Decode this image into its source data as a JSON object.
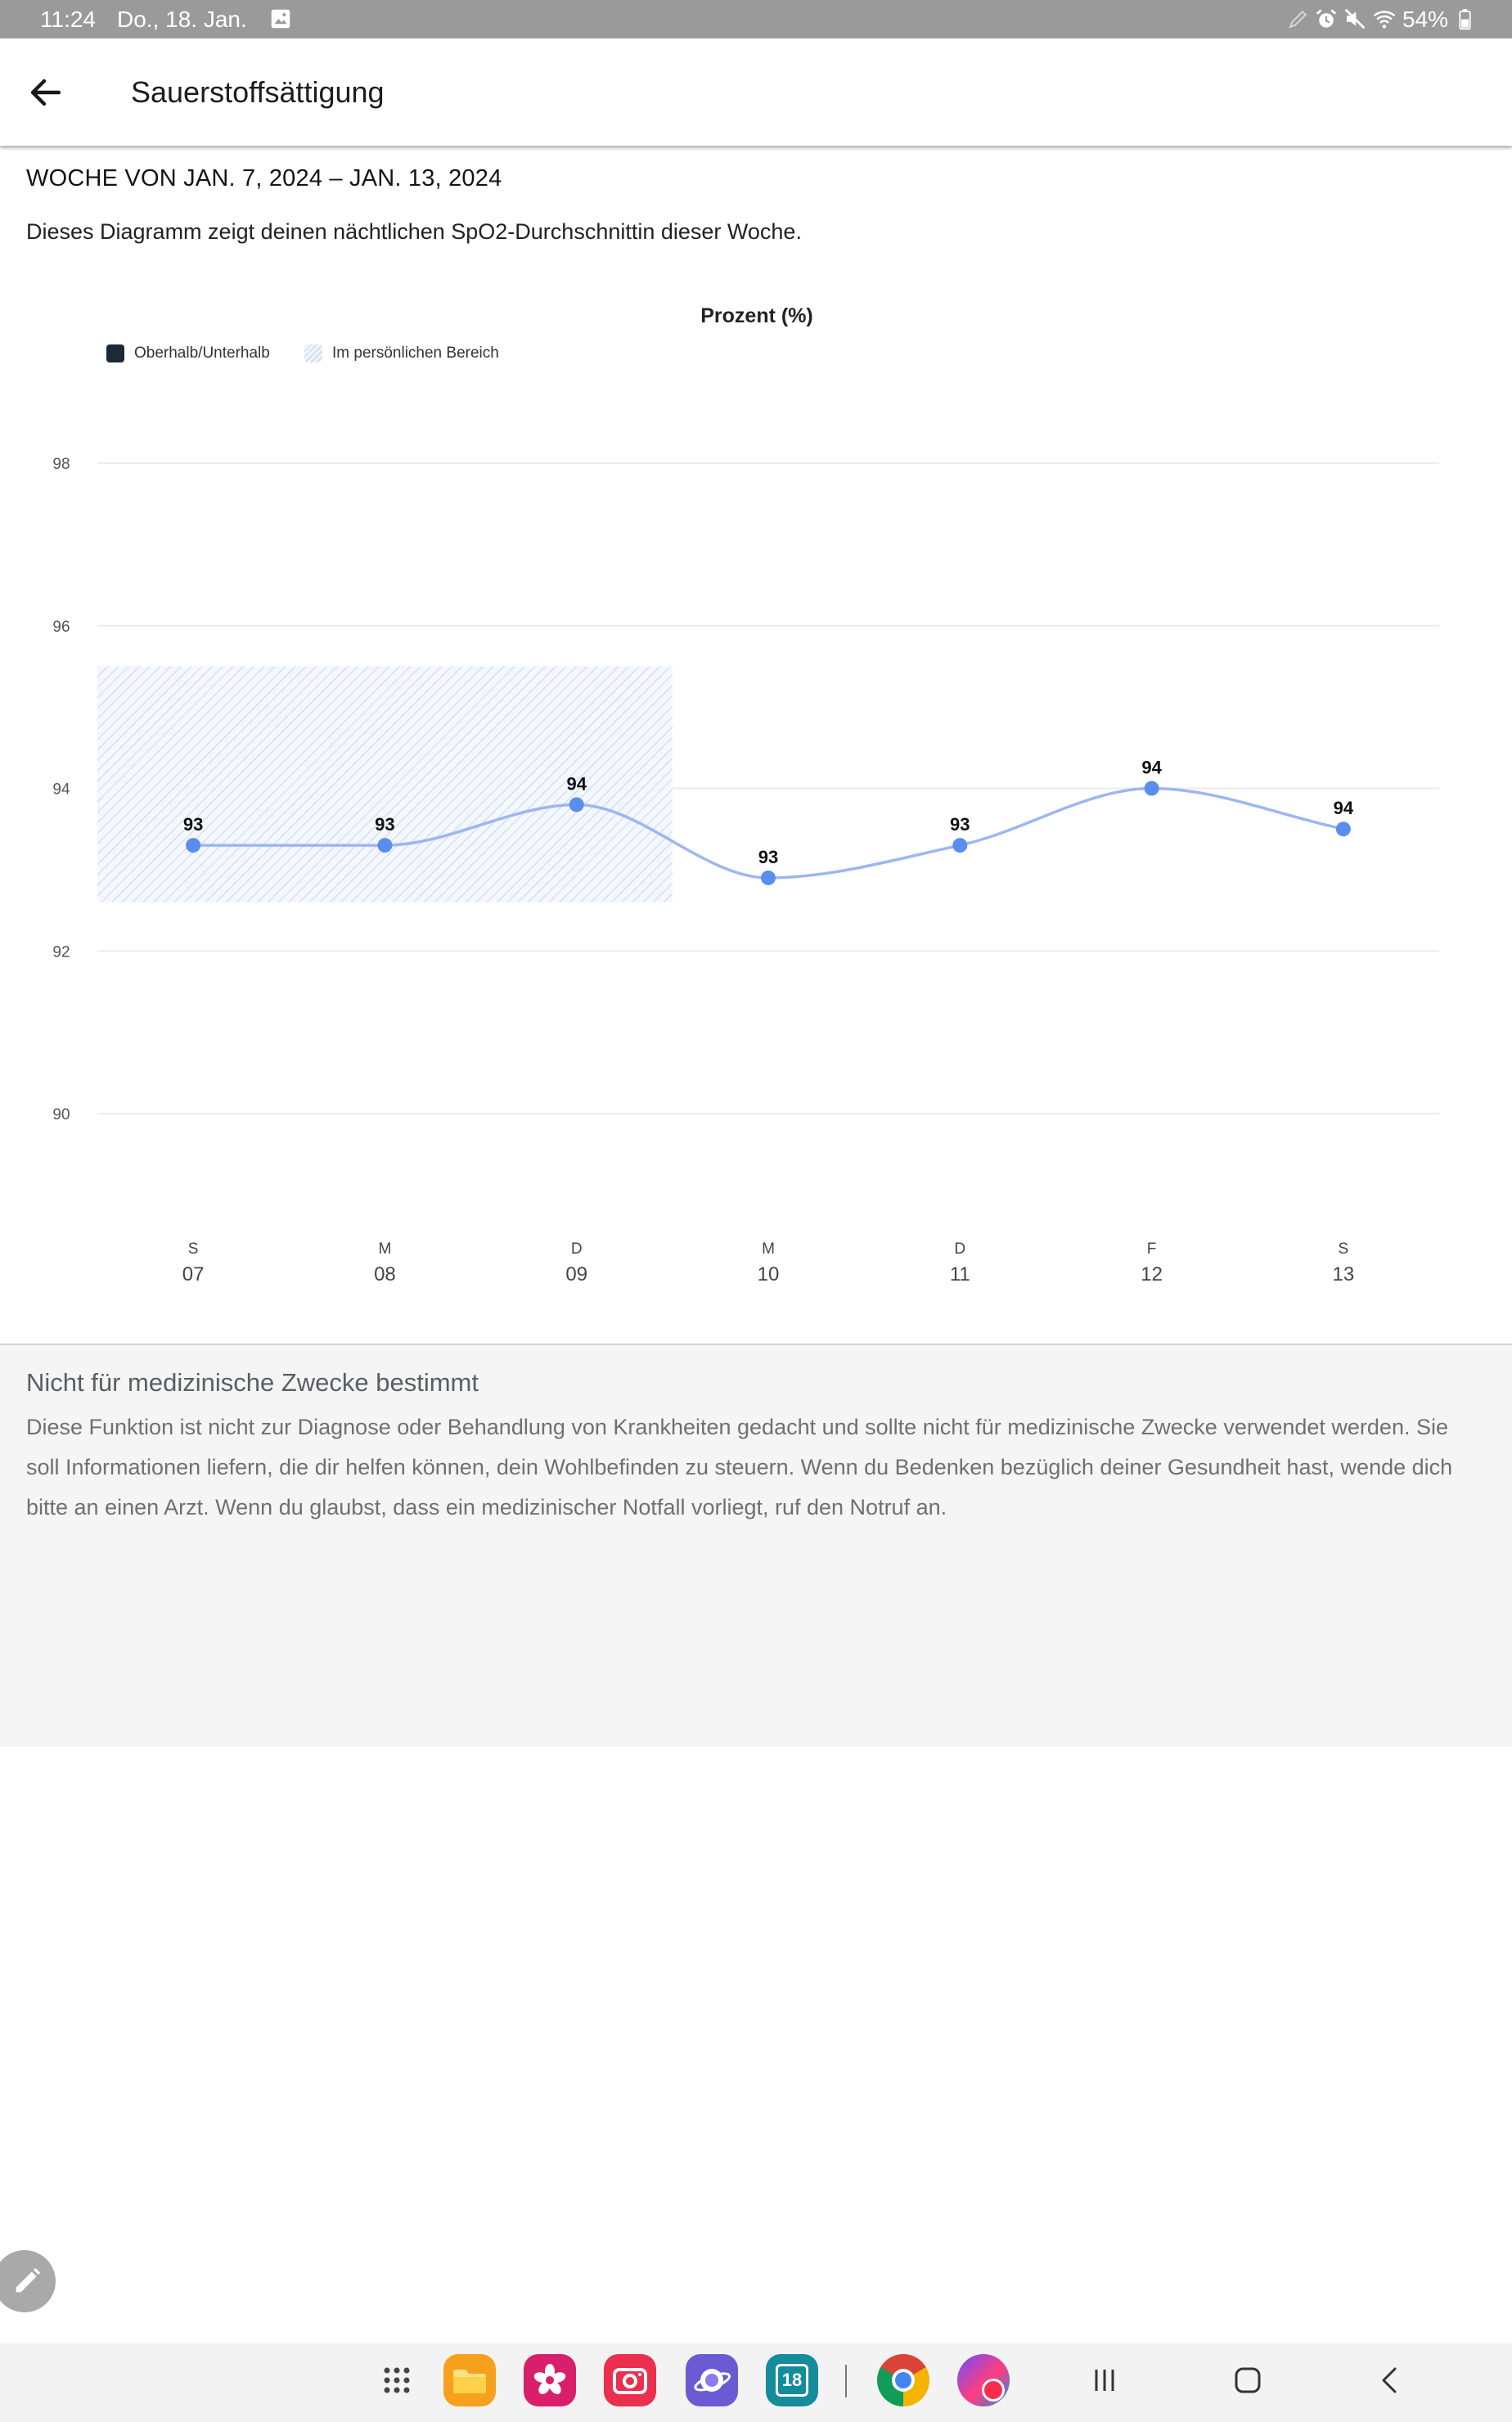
{
  "status_bar": {
    "time": "11:24",
    "date": "Do., 18. Jan.",
    "battery": "54%",
    "left_icons": [
      "image-icon"
    ],
    "right_icons": [
      "pen-icon",
      "alarm-icon",
      "mute-icon",
      "wifi-icon",
      "battery-icon"
    ]
  },
  "app_bar": {
    "back_icon": "arrow-left-icon",
    "title": "Sauerstoffsättigung"
  },
  "summary": {
    "week_range": "WOCHE VON JAN. 7, 2024 – JAN. 13, 2024",
    "description": "Dieses Diagramm zeigt deinen nächtlichen SpO2-Durchschnittin dieser Woche."
  },
  "chart_data": {
    "type": "line",
    "title": "Prozent (%)",
    "x_labels": [
      {
        "day": "S",
        "date": "07"
      },
      {
        "day": "M",
        "date": "08"
      },
      {
        "day": "D",
        "date": "09"
      },
      {
        "day": "M",
        "date": "10"
      },
      {
        "day": "D",
        "date": "11"
      },
      {
        "day": "F",
        "date": "12"
      },
      {
        "day": "S",
        "date": "13"
      }
    ],
    "series": [
      {
        "values": [
          93.3,
          93.3,
          93.8,
          92.9,
          93.3,
          94.0,
          93.5
        ],
        "labels": [
          "93",
          "93",
          "94",
          "93",
          "93",
          "94",
          "94"
        ],
        "point_color": "#5b8def",
        "line_color": "#9db6f2"
      }
    ],
    "yticks": [
      98,
      96,
      94,
      92,
      90
    ],
    "ylim": [
      90,
      98
    ],
    "grid": true,
    "legend_position": "top-left",
    "legend": [
      {
        "label": "Oberhalb/Unterhalb",
        "color": "#1b2a36"
      },
      {
        "label": "Im persönlichen Bereich",
        "color": "#d3ddf2"
      }
    ],
    "personal_range": {
      "min": 92.6,
      "max": 95.5,
      "from": "07",
      "to": "09",
      "color": "#d6e0f3"
    }
  },
  "disclaimer": {
    "title": "Nicht für medizinische Zwecke bestimmt",
    "text": "Diese Funktion ist nicht zur Diagnose oder Behandlung von Krankheiten gedacht und sollte nicht für medizinische Zwecke verwendet werden. Sie soll Informationen liefern, die dir helfen können, dein Wohlbefinden zu steuern. Wenn du Bedenken bezüglich deiner Gesundheit hast, wende dich bitte an einen Arzt. Wenn du glaubst, dass ein medizinischer Notfall vorliegt, ruf den Notruf an."
  },
  "fab": {
    "icon": "pencil-icon"
  },
  "taskbar": {
    "apps": [
      "apps-grid-icon",
      "my-files-icon",
      "gallery-icon",
      "camera-icon",
      "internet-icon",
      "calendar-icon",
      "chrome-icon",
      "vs-app-icon"
    ],
    "calendar_day": "18",
    "nav": [
      "recents-icon",
      "home-icon",
      "back-icon"
    ]
  },
  "colors": {
    "status_bar": "#9a9a9a",
    "section_background": "#f5f5f5",
    "accent": "#5b8def"
  }
}
